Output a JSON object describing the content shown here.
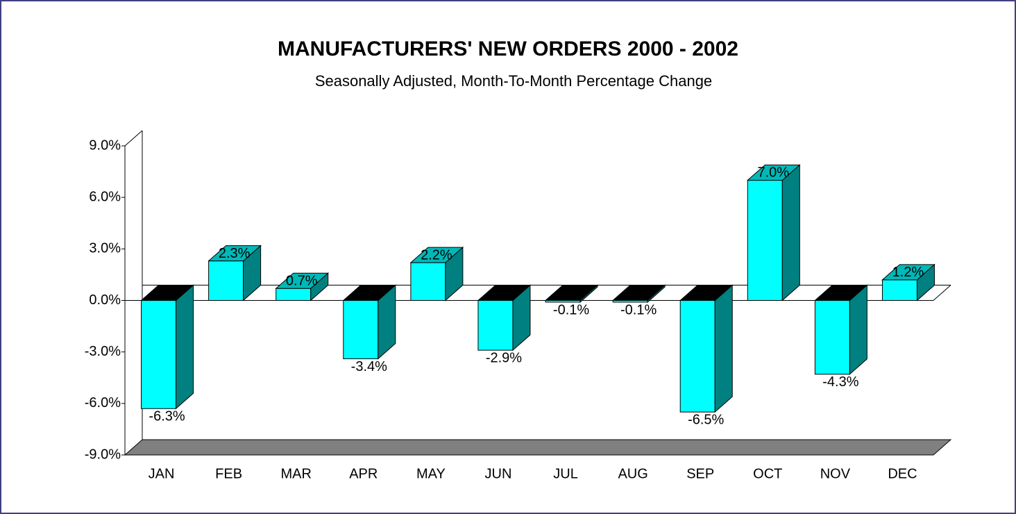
{
  "chart_data": {
    "type": "bar",
    "title": "MANUFACTURERS' NEW ORDERS 2000 - 2002",
    "subtitle": "Seasonally Adjusted,  Month-To-Month Percentage Change",
    "categories": [
      "JAN",
      "FEB",
      "MAR",
      "APR",
      "MAY",
      "JUN",
      "JUL",
      "AUG",
      "SEP",
      "OCT",
      "NOV",
      "DEC"
    ],
    "values": [
      -6.3,
      2.3,
      0.7,
      -3.4,
      2.2,
      -2.9,
      -0.1,
      -0.1,
      -6.5,
      7.0,
      -4.3,
      1.2
    ],
    "value_labels": [
      "-6.3%",
      "2.3%",
      "0.7%",
      "-3.4%",
      "2.2%",
      "-2.9%",
      "-0.1%",
      "-0.1%",
      "-6.5%",
      "7.0%",
      "-4.3%",
      "1.2%"
    ],
    "color": "#00ffff",
    "ylim": [
      -9,
      9
    ],
    "yticks": [
      {
        "value": -9,
        "label": "-9.0%"
      },
      {
        "value": -6,
        "label": "-6.0%"
      },
      {
        "value": -3,
        "label": "-3.0%"
      },
      {
        "value": 0,
        "label": "0.0%"
      },
      {
        "value": 3,
        "label": "3.0%"
      },
      {
        "value": 6,
        "label": "6.0%"
      },
      {
        "value": 9,
        "label": "9.0%"
      }
    ]
  }
}
